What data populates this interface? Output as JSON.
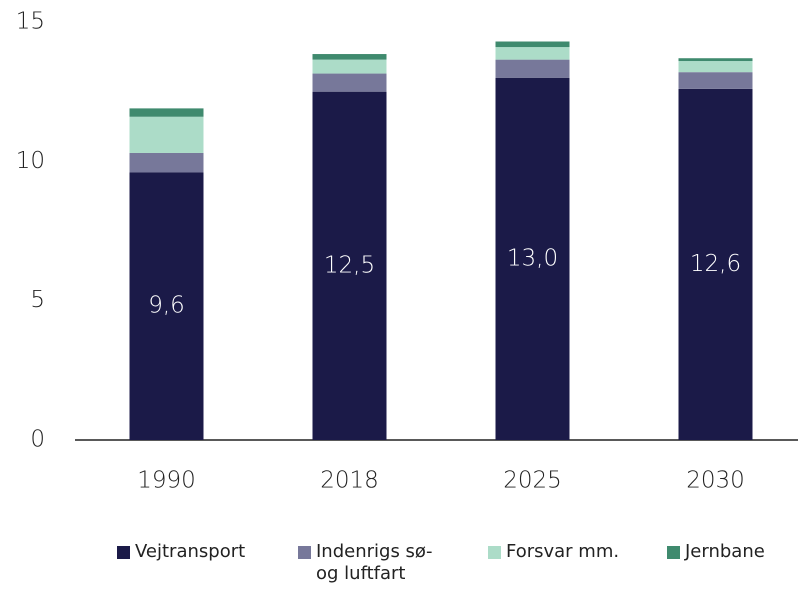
{
  "chart_data": {
    "type": "stacked_bar",
    "categories": [
      "1990",
      "2018",
      "2025",
      "2030"
    ],
    "series": [
      {
        "name": "Vejtransport",
        "color": "#1b1a48",
        "values": [
          9.6,
          12.5,
          13.0,
          12.6
        ],
        "value_labels": [
          "9,6",
          "12,5",
          "13,0",
          "12,6"
        ]
      },
      {
        "name": "Indenrigs sø- og luftfart",
        "color": "#77789a",
        "values": [
          0.7,
          0.65,
          0.65,
          0.6
        ]
      },
      {
        "name": "Forsvar mm.",
        "color": "#acdcc8",
        "values": [
          1.3,
          0.5,
          0.45,
          0.4
        ]
      },
      {
        "name": "Jernbane",
        "color": "#3f8a6e",
        "values": [
          0.3,
          0.2,
          0.2,
          0.1
        ]
      }
    ],
    "ylim": [
      0,
      15
    ],
    "yticks": [
      0,
      5,
      10,
      15
    ],
    "grid": false,
    "legend": "bottom"
  }
}
